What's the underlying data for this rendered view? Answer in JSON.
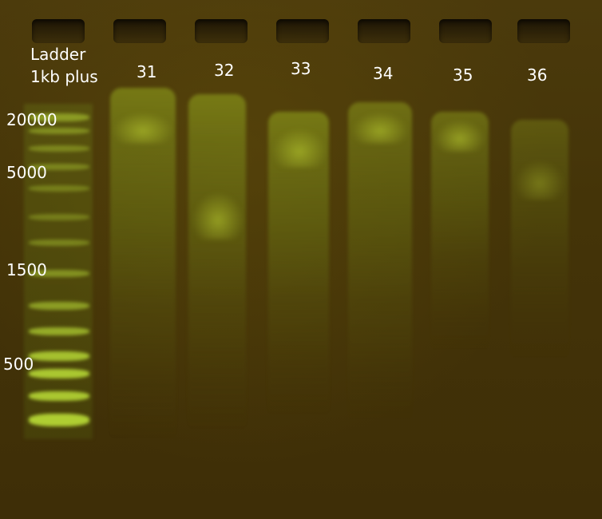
{
  "ladder": {
    "title_line1": "Ladder",
    "title_line2": "1kb plus"
  },
  "lanes": [
    "31",
    "32",
    "33",
    "34",
    "35",
    "36"
  ],
  "size_markers": [
    "20000",
    "5000",
    "1500",
    "500"
  ],
  "colors": {
    "gel_background": "#443408",
    "dna_fluorescence": "#c8f03c",
    "label_text": "#ffffff"
  }
}
